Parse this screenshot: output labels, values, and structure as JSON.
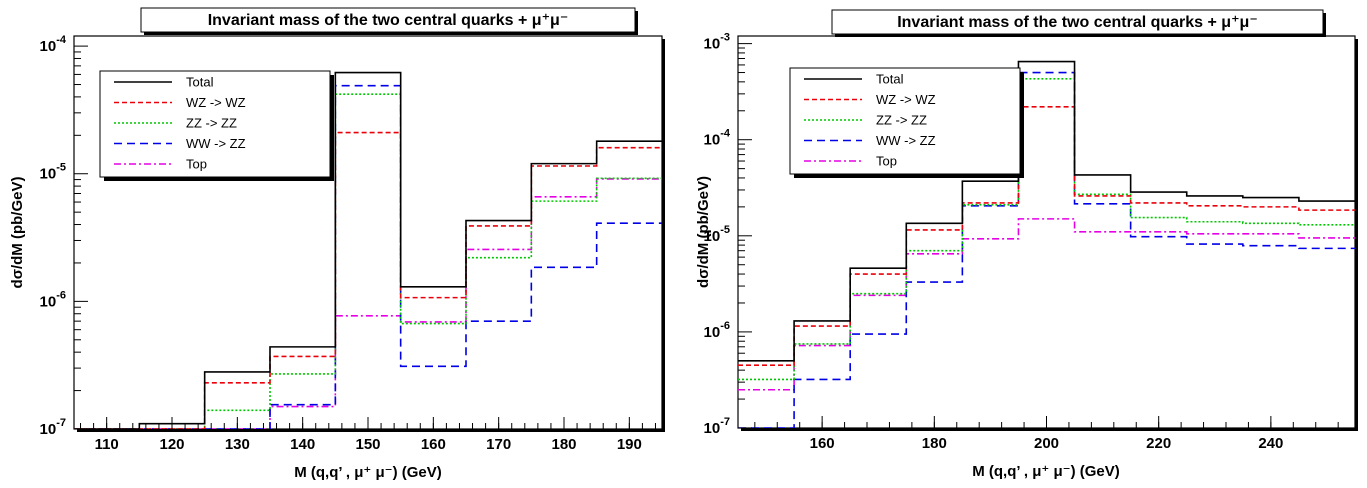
{
  "colors": {
    "Total": "#000000",
    "WZ -> WZ": "#e8000b",
    "ZZ -> ZZ": "#00c800",
    "WW -> ZZ": "#0000e6",
    "Top": "#e600e6"
  },
  "chart_data": [
    {
      "type": "histogram",
      "title": "Invariant mass of the two central quarks + μ⁺μ⁻",
      "xlabel": "M (q,q’ , μ⁺ μ⁻)  (GeV)",
      "ylabel": "dσ/dM  (pb/GeV)",
      "xlim": [
        105,
        195
      ],
      "ylim": [
        1e-07,
        0.00012
      ],
      "yscale": "log",
      "xticks": [
        110,
        120,
        130,
        140,
        150,
        160,
        170,
        180,
        190
      ],
      "yticks": [
        {
          "value": 1e-07,
          "base": "10",
          "exp": "-7"
        },
        {
          "value": 1e-06,
          "base": "10",
          "exp": "-6"
        },
        {
          "value": 1e-05,
          "base": "10",
          "exp": "-5"
        },
        {
          "value": 0.0001,
          "base": "10",
          "exp": "-4"
        }
      ],
      "legend_position": "top-left",
      "bin_edges": [
        105,
        115,
        125,
        135,
        145,
        155,
        165,
        175,
        185,
        195
      ],
      "series": [
        {
          "name": "Total",
          "values": [
            1e-07,
            1.1e-07,
            2.8e-07,
            4.4e-07,
            6.2e-05,
            1.3e-06,
            4.3e-06,
            1.2e-05,
            1.8e-05
          ]
        },
        {
          "name": "WZ -> WZ",
          "values": [
            1e-07,
            1e-07,
            2.3e-07,
            3.7e-07,
            2.1e-05,
            1.07e-06,
            3.9e-06,
            1.15e-05,
            1.6e-05
          ]
        },
        {
          "name": "ZZ -> ZZ",
          "values": [
            1e-07,
            1e-07,
            1.4e-07,
            2.7e-07,
            4.2e-05,
            6.7e-07,
            2.2e-06,
            6.1e-06,
            9.2e-06
          ]
        },
        {
          "name": "WW -> ZZ",
          "values": [
            1e-07,
            1e-07,
            1e-07,
            1.55e-07,
            4.9e-05,
            3.1e-07,
            7e-07,
            1.85e-06,
            4.1e-06
          ]
        },
        {
          "name": "Top",
          "values": [
            1e-07,
            1e-07,
            1e-07,
            1.5e-07,
            7.7e-07,
            6.9e-07,
            2.55e-06,
            6.6e-06,
            9.1e-06
          ]
        }
      ]
    },
    {
      "type": "histogram",
      "title": "Invariant mass of the two central quarks + μ⁺μ⁻",
      "xlabel": "M (q,q’ , μ⁺ μ⁻)  (GeV)",
      "ylabel": "dσ/dM  (pb/GeV)",
      "xlim": [
        145,
        255
      ],
      "ylim": [
        1e-07,
        0.0012
      ],
      "yscale": "log",
      "xticks": [
        160,
        180,
        200,
        220,
        240
      ],
      "yticks": [
        {
          "value": 1e-07,
          "base": "10",
          "exp": "-7"
        },
        {
          "value": 1e-06,
          "base": "10",
          "exp": "-6"
        },
        {
          "value": 1e-05,
          "base": "10",
          "exp": "-5"
        },
        {
          "value": 0.0001,
          "base": "10",
          "exp": "-4"
        },
        {
          "value": 0.001,
          "base": "10",
          "exp": "-3"
        }
      ],
      "legend_position": "top-left",
      "bin_edges": [
        145,
        155,
        165,
        175,
        185,
        195,
        205,
        215,
        225,
        235,
        245,
        255
      ],
      "series": [
        {
          "name": "Total",
          "values": [
            5e-07,
            1.3e-06,
            4.6e-06,
            1.35e-05,
            3.7e-05,
            0.00065,
            4.3e-05,
            2.85e-05,
            2.6e-05,
            2.5e-05,
            2.3e-05
          ]
        },
        {
          "name": "WZ -> WZ",
          "values": [
            4.5e-07,
            1.15e-06,
            4e-06,
            1.15e-05,
            2.2e-05,
            0.00022,
            2.6e-05,
            2.2e-05,
            2.05e-05,
            2e-05,
            1.85e-05
          ]
        },
        {
          "name": "ZZ -> ZZ",
          "values": [
            3.2e-07,
            7.5e-07,
            2.5e-06,
            7e-06,
            2.1e-05,
            0.00043,
            2.7e-05,
            1.55e-05,
            1.4e-05,
            1.35e-05,
            1.3e-05
          ]
        },
        {
          "name": "WW -> ZZ",
          "values": [
            1e-07,
            3.2e-07,
            9.5e-07,
            3.3e-06,
            2.05e-05,
            0.0005,
            2.15e-05,
            9.8e-06,
            8.2e-06,
            7.9e-06,
            7.4e-06
          ]
        },
        {
          "name": "Top",
          "values": [
            2.5e-07,
            7.2e-07,
            2.4e-06,
            6.5e-06,
            9.3e-06,
            1.5e-05,
            1.1e-05,
            1.1e-05,
            1.05e-05,
            1.05e-05,
            9.5e-06
          ]
        }
      ]
    }
  ]
}
